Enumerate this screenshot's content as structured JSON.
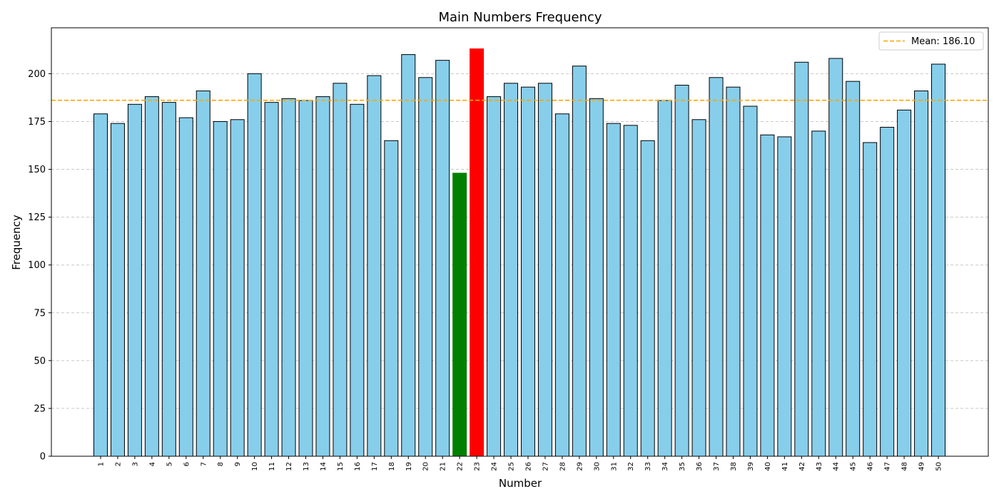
{
  "chart_data": {
    "type": "bar",
    "title": "Main Numbers Frequency",
    "xlabel": "Number",
    "ylabel": "Frequency",
    "ylim": [
      0,
      224
    ],
    "yticks": [
      0,
      25,
      50,
      75,
      100,
      125,
      150,
      175,
      200
    ],
    "grid": "y-dashed",
    "legend_position": "top-right",
    "categories": [
      "1",
      "2",
      "3",
      "4",
      "5",
      "6",
      "7",
      "8",
      "9",
      "10",
      "11",
      "12",
      "13",
      "14",
      "15",
      "16",
      "17",
      "18",
      "19",
      "20",
      "21",
      "22",
      "23",
      "24",
      "25",
      "26",
      "27",
      "28",
      "29",
      "30",
      "31",
      "32",
      "33",
      "34",
      "35",
      "36",
      "37",
      "38",
      "39",
      "40",
      "41",
      "42",
      "43",
      "44",
      "45",
      "46",
      "47",
      "48",
      "49",
      "50"
    ],
    "values": [
      179,
      174,
      184,
      188,
      185,
      177,
      191,
      175,
      176,
      200,
      185,
      187,
      186,
      188,
      195,
      184,
      199,
      165,
      210,
      198,
      207,
      148,
      213,
      188,
      195,
      193,
      195,
      179,
      204,
      187,
      174,
      173,
      165,
      186,
      194,
      176,
      198,
      193,
      183,
      168,
      167,
      206,
      170,
      208,
      196,
      164,
      172,
      181,
      191,
      205
    ],
    "highlight": {
      "min_category": "22",
      "max_category": "23"
    },
    "mean": {
      "value": 186.1,
      "label": "Mean: 186.10"
    },
    "colors": {
      "bar": "#87ceeb",
      "bar_edge": "#000000",
      "min_bar": "#008000",
      "max_bar": "#ff0000",
      "mean_line": "#ffa500",
      "grid": "#c8c8c8"
    }
  }
}
